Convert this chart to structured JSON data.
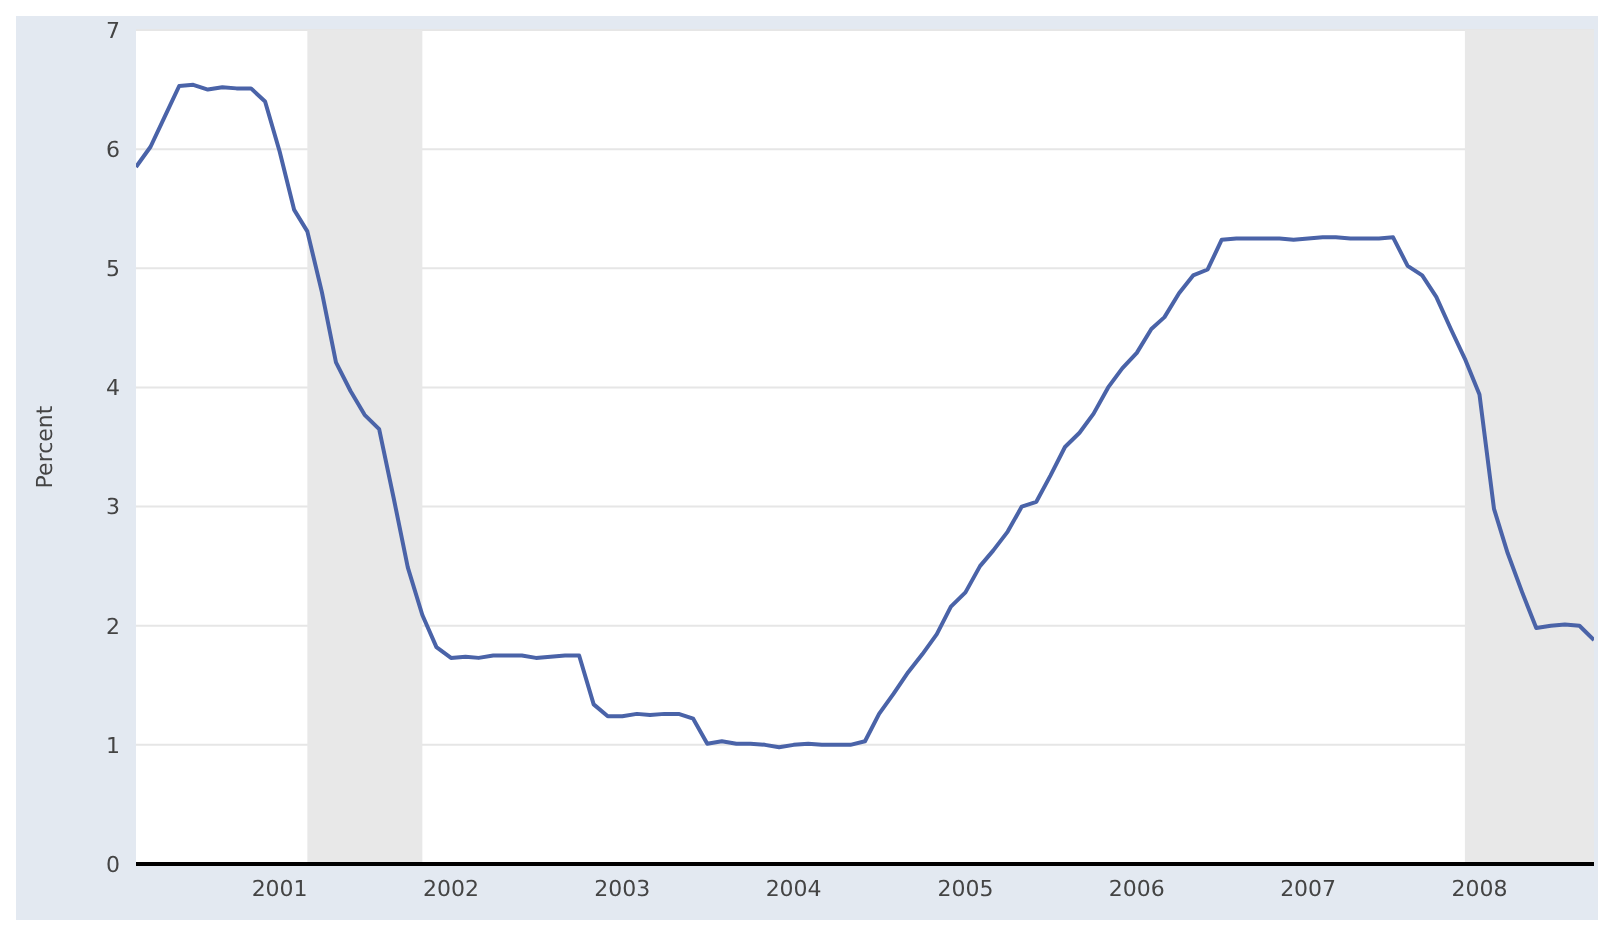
{
  "chart_data": {
    "type": "line",
    "ylabel": "Percent",
    "x": [
      "2000-03",
      "2000-04",
      "2000-05",
      "2000-06",
      "2000-07",
      "2000-08",
      "2000-09",
      "2000-10",
      "2000-11",
      "2000-12",
      "2001-01",
      "2001-02",
      "2001-03",
      "2001-04",
      "2001-05",
      "2001-06",
      "2001-07",
      "2001-08",
      "2001-09",
      "2001-10",
      "2001-11",
      "2001-12",
      "2002-01",
      "2002-02",
      "2002-03",
      "2002-04",
      "2002-05",
      "2002-06",
      "2002-07",
      "2002-08",
      "2002-09",
      "2002-10",
      "2002-11",
      "2002-12",
      "2003-01",
      "2003-02",
      "2003-03",
      "2003-04",
      "2003-05",
      "2003-06",
      "2003-07",
      "2003-08",
      "2003-09",
      "2003-10",
      "2003-11",
      "2003-12",
      "2004-01",
      "2004-02",
      "2004-03",
      "2004-04",
      "2004-05",
      "2004-06",
      "2004-07",
      "2004-08",
      "2004-09",
      "2004-10",
      "2004-11",
      "2004-12",
      "2005-01",
      "2005-02",
      "2005-03",
      "2005-04",
      "2005-05",
      "2005-06",
      "2005-07",
      "2005-08",
      "2005-09",
      "2005-10",
      "2005-11",
      "2005-12",
      "2006-01",
      "2006-02",
      "2006-03",
      "2006-04",
      "2006-05",
      "2006-06",
      "2006-07",
      "2006-08",
      "2006-09",
      "2006-10",
      "2006-11",
      "2006-12",
      "2007-01",
      "2007-02",
      "2007-03",
      "2007-04",
      "2007-05",
      "2007-06",
      "2007-07",
      "2007-08",
      "2007-09",
      "2007-10",
      "2007-11",
      "2007-12",
      "2008-01",
      "2008-02",
      "2008-03",
      "2008-04",
      "2008-05",
      "2008-06",
      "2008-07",
      "2008-08",
      "2008-09"
    ],
    "series": [
      {
        "color": "#4a63a8",
        "values": [
          5.85,
          6.02,
          6.27,
          6.53,
          6.54,
          6.5,
          6.52,
          6.51,
          6.51,
          6.4,
          5.98,
          5.49,
          5.31,
          4.8,
          4.21,
          3.97,
          3.77,
          3.65,
          3.07,
          2.49,
          2.09,
          1.82,
          1.73,
          1.74,
          1.73,
          1.75,
          1.75,
          1.75,
          1.73,
          1.74,
          1.75,
          1.75,
          1.34,
          1.24,
          1.24,
          1.26,
          1.25,
          1.26,
          1.26,
          1.22,
          1.01,
          1.03,
          1.01,
          1.01,
          1.0,
          0.98,
          1.0,
          1.01,
          1.0,
          1.0,
          1.0,
          1.03,
          1.26,
          1.43,
          1.61,
          1.76,
          1.93,
          2.16,
          2.28,
          2.5,
          2.63,
          2.79,
          3.0,
          3.04,
          3.26,
          3.5,
          3.62,
          3.78,
          4.0,
          4.16,
          4.29,
          4.49,
          4.59,
          4.79,
          4.94,
          4.99,
          5.24,
          5.25,
          5.25,
          5.25,
          5.25,
          5.24,
          5.25,
          5.26,
          5.26,
          5.25,
          5.25,
          5.25,
          5.26,
          5.02,
          4.94,
          4.76,
          4.49,
          4.24,
          3.94,
          2.98,
          2.61,
          2.28,
          1.98,
          2.0,
          2.01,
          2.0,
          1.88
        ]
      }
    ],
    "xlim": [
      "2000-03",
      "2008-09"
    ],
    "xticks": [
      {
        "value": "2001",
        "label": "2001"
      },
      {
        "value": "2002",
        "label": "2002"
      },
      {
        "value": "2003",
        "label": "2003"
      },
      {
        "value": "2004",
        "label": "2004"
      },
      {
        "value": "2005",
        "label": "2005"
      },
      {
        "value": "2006",
        "label": "2006"
      },
      {
        "value": "2007",
        "label": "2007"
      },
      {
        "value": "2008",
        "label": "2008"
      }
    ],
    "ylim": [
      0,
      7
    ],
    "yticks": [
      0,
      1,
      2,
      3,
      4,
      5,
      6,
      7
    ],
    "grid": "y",
    "marker": "none",
    "line_style": "solid",
    "bands": [
      {
        "axis": "x",
        "from": "2001-03",
        "to": "2001-11",
        "color": "#e8e8e8"
      },
      {
        "axis": "x",
        "from": "2007-12",
        "to": "2008-09",
        "color": "#e8e8e8"
      }
    ]
  }
}
